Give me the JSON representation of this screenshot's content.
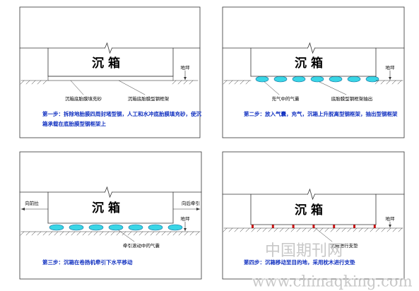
{
  "panels": [
    {
      "title": "沉 箱",
      "ground": "地坪",
      "labels": [
        "沉箱底胎膜填充砂",
        "沉箱底胎膜型钢框架"
      ],
      "caption": [
        "第一步：拆除地胎膜四周封堵型钢，人工和水冲底胎膜填充砂，使沉",
        "箱承载在底胎膜型钢框架上"
      ]
    },
    {
      "title": "沉 箱",
      "ground": "地坪",
      "labels": [
        "充气中的气囊",
        "底胎膜型钢框架抽出"
      ],
      "caption": [
        "第二步：放入气囊，充气，沉箱上升脱离型钢框架，抽出型钢框架"
      ]
    },
    {
      "title": "沉 箱",
      "ground": "地坪",
      "labels": [
        "牵引滚动中的气囊",
        "向前拉",
        "向后牵引"
      ],
      "caption": [
        "第三步：沉箱在卷扬机牵引下水平移动"
      ]
    },
    {
      "title": "沉 箱",
      "ground": "地坪",
      "labels": [
        "沉箱进行支垫"
      ],
      "caption": [
        "第四步：沉箱移动至目的地，采用枕木进行支垫"
      ]
    }
  ],
  "watermark": {
    "site": "中国期刊网",
    "url": "www.chinaqking.com"
  }
}
